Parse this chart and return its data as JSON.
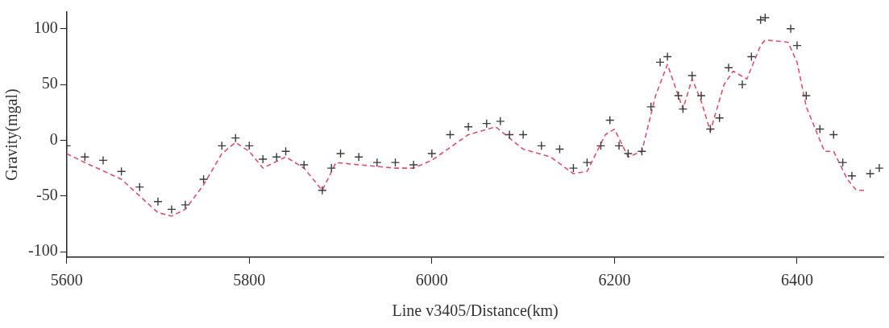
{
  "chart_data": {
    "type": "scatter",
    "xlabel": "Line v3405/Distance(km)",
    "ylabel": "Gravity(mgal)",
    "xlim": [
      5600,
      6495
    ],
    "xticks": [
      5600,
      5800,
      6000,
      6200,
      6400
    ],
    "ylim": [
      -105,
      115
    ],
    "yticks": [
      -100,
      -50,
      0,
      50,
      100
    ],
    "grid": false,
    "legend": false,
    "series": [
      {
        "type": "scatter",
        "marker": "cross",
        "color": "#3c3c3c",
        "x": [
          5600,
          5620,
          5640,
          5660,
          5680,
          5700,
          5715,
          5730,
          5750,
          5770,
          5785,
          5800,
          5815,
          5830,
          5840,
          5860,
          5880,
          5890,
          5900,
          5920,
          5940,
          5960,
          5980,
          6000,
          6020,
          6040,
          6060,
          6075,
          6085,
          6100,
          6120,
          6140,
          6155,
          6170,
          6185,
          6195,
          6205,
          6215,
          6230,
          6240,
          6250,
          6258,
          6270,
          6275,
          6285,
          6295,
          6305,
          6315,
          6325,
          6340,
          6350,
          6360,
          6365,
          6393,
          6400,
          6410,
          6425,
          6440,
          6450,
          6460,
          6480,
          6490
        ],
        "values": [
          -5,
          -15,
          -18,
          -28,
          -42,
          -55,
          -62,
          -58,
          -35,
          -5,
          2,
          -5,
          -17,
          -15,
          -10,
          -22,
          -45,
          -25,
          -12,
          -15,
          -20,
          -20,
          -22,
          -12,
          5,
          12,
          15,
          17,
          5,
          5,
          -5,
          -8,
          -25,
          -20,
          -5,
          18,
          -5,
          -12,
          -10,
          30,
          70,
          75,
          40,
          28,
          58,
          40,
          10,
          20,
          65,
          50,
          75,
          108,
          110,
          100,
          85,
          40,
          10,
          5,
          -20,
          -32,
          -30,
          -25
        ]
      },
      {
        "type": "line",
        "line_style": "dashed",
        "marker": "none",
        "color": "#e0506a",
        "x": [
          5600,
          5620,
          5660,
          5700,
          5715,
          5730,
          5750,
          5770,
          5785,
          5800,
          5815,
          5840,
          5860,
          5880,
          5895,
          5920,
          5960,
          5980,
          6000,
          6040,
          6070,
          6100,
          6130,
          6155,
          6170,
          6190,
          6200,
          6215,
          6230,
          6245,
          6258,
          6275,
          6285,
          6295,
          6305,
          6320,
          6330,
          6345,
          6360,
          6365,
          6390,
          6400,
          6410,
          6430,
          6440,
          6455,
          6465,
          6475
        ],
        "values": [
          -12,
          -20,
          -35,
          -65,
          -68,
          -62,
          -40,
          -12,
          -2,
          -10,
          -25,
          -15,
          -25,
          -45,
          -20,
          -22,
          -25,
          -25,
          -18,
          5,
          12,
          -8,
          -15,
          -30,
          -28,
          5,
          10,
          -15,
          -10,
          40,
          68,
          28,
          55,
          35,
          8,
          50,
          62,
          55,
          85,
          90,
          88,
          70,
          30,
          -10,
          -10,
          -35,
          -45,
          -45
        ]
      }
    ]
  }
}
